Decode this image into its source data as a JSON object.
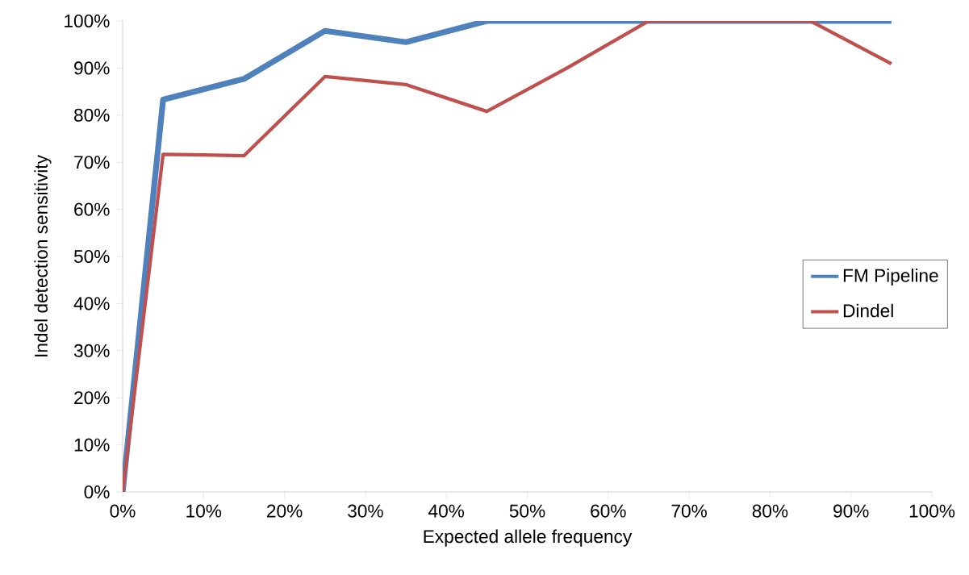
{
  "chart_data": {
    "type": "line",
    "xlabel": "Expected allele frequency",
    "ylabel": "Indel detection sensitivity",
    "x": [
      0,
      5,
      15,
      25,
      35,
      45,
      55,
      65,
      75,
      85,
      95
    ],
    "series": [
      {
        "name": "FM Pipeline",
        "color": "#4f81bd",
        "values": [
          0,
          83.3,
          87.7,
          97.9,
          95.5,
          100,
          100,
          100,
          100,
          100,
          100
        ]
      },
      {
        "name": "Dindel",
        "color": "#c0504d",
        "values": [
          0,
          71.7,
          71.4,
          88.2,
          86.5,
          80.8,
          90.1,
          100,
          100,
          100,
          90.9
        ]
      }
    ],
    "xlim": [
      0,
      100
    ],
    "ylim": [
      0,
      100
    ],
    "xticks": [
      {
        "value": 0,
        "label": "0%"
      },
      {
        "value": 10,
        "label": "10%"
      },
      {
        "value": 20,
        "label": "20%"
      },
      {
        "value": 30,
        "label": "30%"
      },
      {
        "value": 40,
        "label": "40%"
      },
      {
        "value": 50,
        "label": "50%"
      },
      {
        "value": 60,
        "label": "60%"
      },
      {
        "value": 70,
        "label": "70%"
      },
      {
        "value": 80,
        "label": "80%"
      },
      {
        "value": 90,
        "label": "90%"
      },
      {
        "value": 100,
        "label": "100%"
      }
    ],
    "yticks": [
      {
        "value": 0,
        "label": "0%"
      },
      {
        "value": 10,
        "label": "10%"
      },
      {
        "value": 20,
        "label": "20%"
      },
      {
        "value": 30,
        "label": "30%"
      },
      {
        "value": 40,
        "label": "40%"
      },
      {
        "value": 50,
        "label": "50%"
      },
      {
        "value": 60,
        "label": "60%"
      },
      {
        "value": 70,
        "label": "70%"
      },
      {
        "value": 80,
        "label": "80%"
      },
      {
        "value": 90,
        "label": "90%"
      },
      {
        "value": 100,
        "label": "100%"
      }
    ],
    "grid": false,
    "legend": "right",
    "marker": "none",
    "line_style": "solid"
  }
}
